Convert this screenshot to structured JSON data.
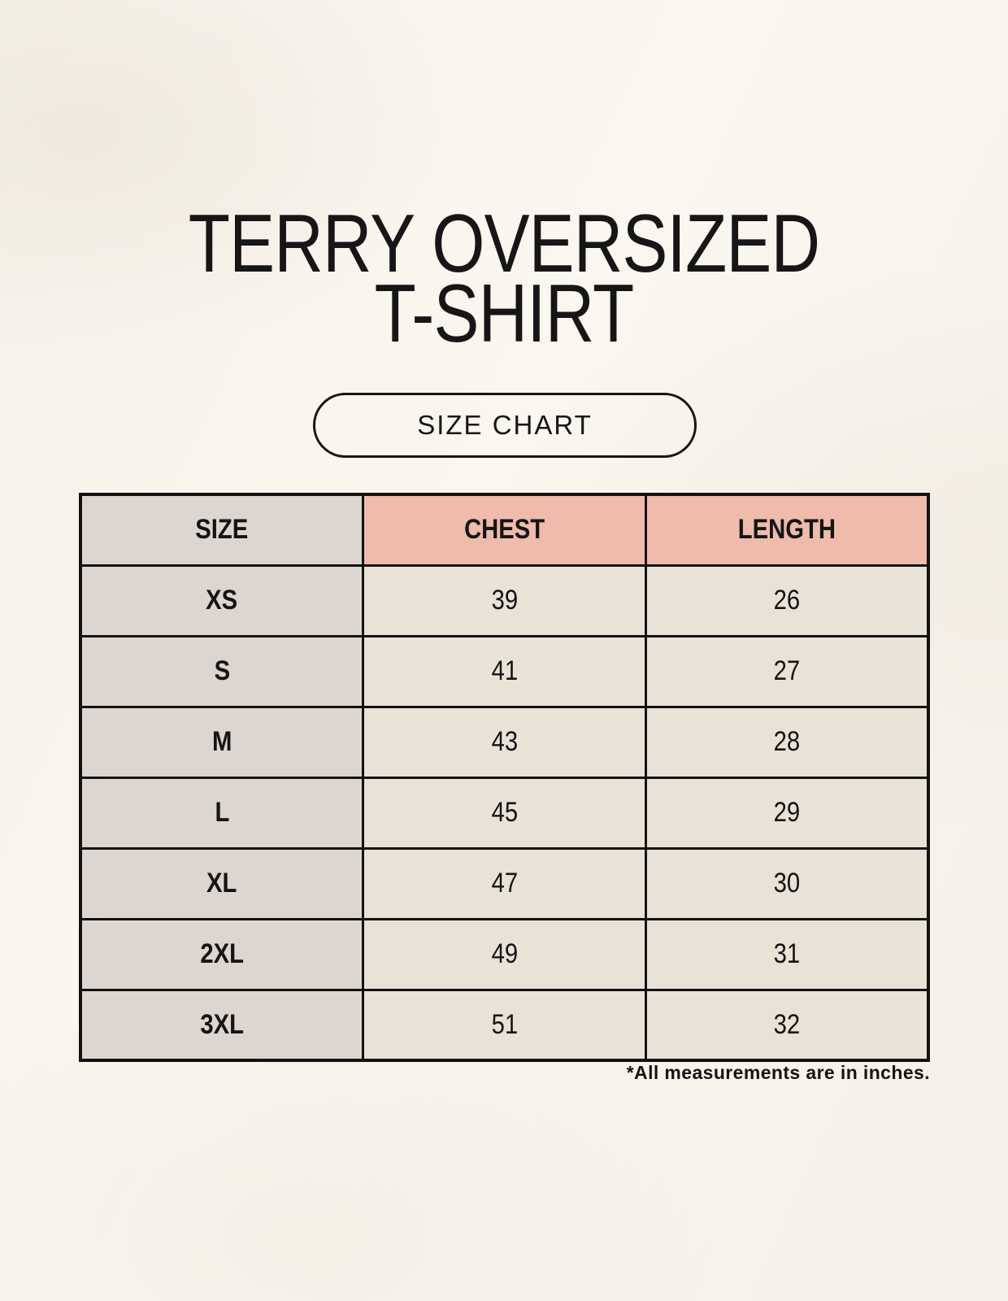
{
  "header": {
    "title_line1": "TERRY OVERSIZED",
    "title_line2": "T-SHIRT",
    "size_chart_label": "SIZE CHART"
  },
  "chart_data": {
    "type": "table",
    "title": "TERRY OVERSIZED T-SHIRT",
    "columns": [
      "SIZE",
      "CHEST",
      "LENGTH"
    ],
    "rows": [
      {
        "size": "XS",
        "chest": "39",
        "length": "26"
      },
      {
        "size": "S",
        "chest": "41",
        "length": "27"
      },
      {
        "size": "M",
        "chest": "43",
        "length": "28"
      },
      {
        "size": "L",
        "chest": "45",
        "length": "29"
      },
      {
        "size": "XL",
        "chest": "47",
        "length": "30"
      },
      {
        "size": "2XL",
        "chest": "49",
        "length": "31"
      },
      {
        "size": "3XL",
        "chest": "51",
        "length": "32"
      }
    ],
    "units": "inches",
    "footnote": "*All measurements are in inches."
  },
  "colors": {
    "background_cream": "#f8f4ed",
    "header_accent_pink": "#eebbac",
    "size_column_taupe": "#ddd6d0",
    "value_cell_beige": "#e9e2d7",
    "table_border": "#121212",
    "text": "#141414"
  }
}
